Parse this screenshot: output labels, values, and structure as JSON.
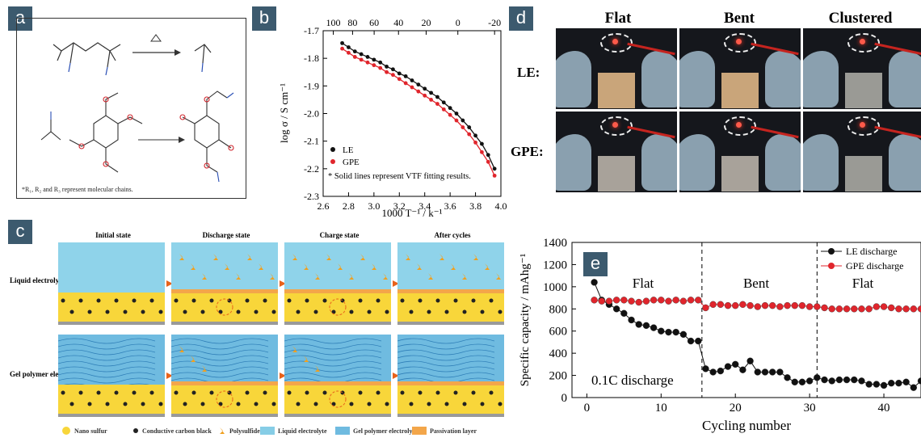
{
  "panels": {
    "a": {
      "label": "a",
      "note": "*R₁, R₂ and R₃ represent molecular chains."
    },
    "b": {
      "label": "b",
      "note": "* Solid lines represent VTF fitting results.",
      "top_ticks": [
        "100",
        "80",
        "60",
        "40",
        "20",
        "0",
        "-20"
      ]
    },
    "c": {
      "label": "c",
      "columns": [
        "Initial state",
        "Discharge state",
        "Charge state",
        "After cycles"
      ],
      "rows": [
        "Liquid electrolyte:",
        "Gel polymer electrolyte:"
      ],
      "legend": [
        "Nano sulfur",
        "Conductive carbon black",
        "Polysulfide",
        "Liquid electrolyte",
        "Gel polymer electrolyte",
        "Passivation layer"
      ]
    },
    "d": {
      "label": "d",
      "columns": [
        "Flat",
        "Bent",
        "Clustered"
      ],
      "rows": [
        "LE:",
        "GPE:"
      ]
    },
    "e": {
      "label": "e",
      "regions": [
        "Flat",
        "Bent",
        "Flat"
      ],
      "annotation": "0.1C discharge"
    }
  },
  "chart_data": [
    {
      "panel": "b",
      "type": "scatter",
      "xlabel": "1000 T⁻¹ / k⁻¹",
      "ylabel": "log σ / S cm⁻¹",
      "xlim": [
        2.6,
        4.0
      ],
      "ylim": [
        -2.3,
        -1.7
      ],
      "xticks": [
        "2.6",
        "2.8",
        "3.0",
        "3.2",
        "3.4",
        "3.6",
        "3.8",
        "4.0"
      ],
      "yticks": [
        "-1.7",
        "-1.8",
        "-1.9",
        "-2.0",
        "-2.1",
        "-2.2",
        "-2.3"
      ],
      "legend_position": "bottom-left",
      "series": [
        {
          "name": "LE",
          "color": "#111111",
          "x": [
            2.75,
            2.8,
            2.85,
            2.9,
            2.95,
            3.0,
            3.05,
            3.1,
            3.15,
            3.2,
            3.25,
            3.3,
            3.35,
            3.4,
            3.45,
            3.5,
            3.55,
            3.6,
            3.65,
            3.7,
            3.75,
            3.8,
            3.85,
            3.9,
            3.95
          ],
          "y": [
            -1.745,
            -1.76,
            -1.775,
            -1.785,
            -1.795,
            -1.805,
            -1.815,
            -1.83,
            -1.84,
            -1.855,
            -1.865,
            -1.88,
            -1.895,
            -1.91,
            -1.925,
            -1.94,
            -1.96,
            -1.98,
            -2.0,
            -2.025,
            -2.05,
            -2.08,
            -2.11,
            -2.15,
            -2.2
          ]
        },
        {
          "name": "GPE",
          "color": "#e0252c",
          "x": [
            2.75,
            2.8,
            2.85,
            2.9,
            2.95,
            3.0,
            3.05,
            3.1,
            3.15,
            3.2,
            3.25,
            3.3,
            3.35,
            3.4,
            3.45,
            3.5,
            3.55,
            3.6,
            3.65,
            3.7,
            3.75,
            3.8,
            3.85,
            3.9,
            3.95
          ],
          "y": [
            -1.765,
            -1.78,
            -1.795,
            -1.805,
            -1.815,
            -1.825,
            -1.835,
            -1.85,
            -1.86,
            -1.875,
            -1.89,
            -1.905,
            -1.92,
            -1.935,
            -1.95,
            -1.965,
            -1.985,
            -2.005,
            -2.025,
            -2.05,
            -2.075,
            -2.105,
            -2.14,
            -2.175,
            -2.225
          ]
        }
      ]
    },
    {
      "panel": "e",
      "type": "scatter",
      "xlabel": "Cycling number",
      "ylabel": "Specific capacity / mAhg⁻¹",
      "xlim": [
        -2,
        45
      ],
      "ylim": [
        0,
        1400
      ],
      "xticks": [
        "0",
        "10",
        "20",
        "30",
        "40"
      ],
      "yticks": [
        "0",
        "200",
        "400",
        "600",
        "800",
        "1000",
        "1200",
        "1400"
      ],
      "dividers": [
        15.5,
        31
      ],
      "legend_position": "top-right",
      "series": [
        {
          "name": "LE discharge",
          "color": "#111111",
          "x": [
            1,
            2,
            3,
            4,
            5,
            6,
            7,
            8,
            9,
            10,
            11,
            12,
            13,
            14,
            15,
            16,
            17,
            18,
            19,
            20,
            21,
            22,
            23,
            24,
            25,
            26,
            27,
            28,
            29,
            30,
            31,
            32,
            33,
            34,
            35,
            36,
            37,
            38,
            39,
            40,
            41,
            42,
            43,
            44,
            45
          ],
          "y": [
            1040,
            880,
            840,
            800,
            760,
            700,
            660,
            650,
            630,
            600,
            590,
            590,
            570,
            510,
            510,
            260,
            230,
            240,
            280,
            300,
            250,
            330,
            230,
            230,
            230,
            230,
            180,
            140,
            140,
            150,
            180,
            160,
            150,
            160,
            160,
            160,
            150,
            120,
            120,
            110,
            130,
            130,
            140,
            90,
            150
          ]
        },
        {
          "name": "GPE discharge",
          "color": "#e0252c",
          "x": [
            1,
            2,
            3,
            4,
            5,
            6,
            7,
            8,
            9,
            10,
            11,
            12,
            13,
            14,
            15,
            16,
            17,
            18,
            19,
            20,
            21,
            22,
            23,
            24,
            25,
            26,
            27,
            28,
            29,
            30,
            31,
            32,
            33,
            34,
            35,
            36,
            37,
            38,
            39,
            40,
            41,
            42,
            43,
            44,
            45
          ],
          "y": [
            880,
            870,
            870,
            880,
            880,
            870,
            860,
            870,
            880,
            880,
            870,
            880,
            870,
            880,
            880,
            810,
            840,
            840,
            830,
            830,
            840,
            830,
            820,
            830,
            830,
            820,
            830,
            830,
            830,
            820,
            820,
            810,
            800,
            800,
            800,
            800,
            800,
            800,
            820,
            820,
            810,
            800,
            800,
            800,
            800
          ]
        }
      ]
    }
  ]
}
